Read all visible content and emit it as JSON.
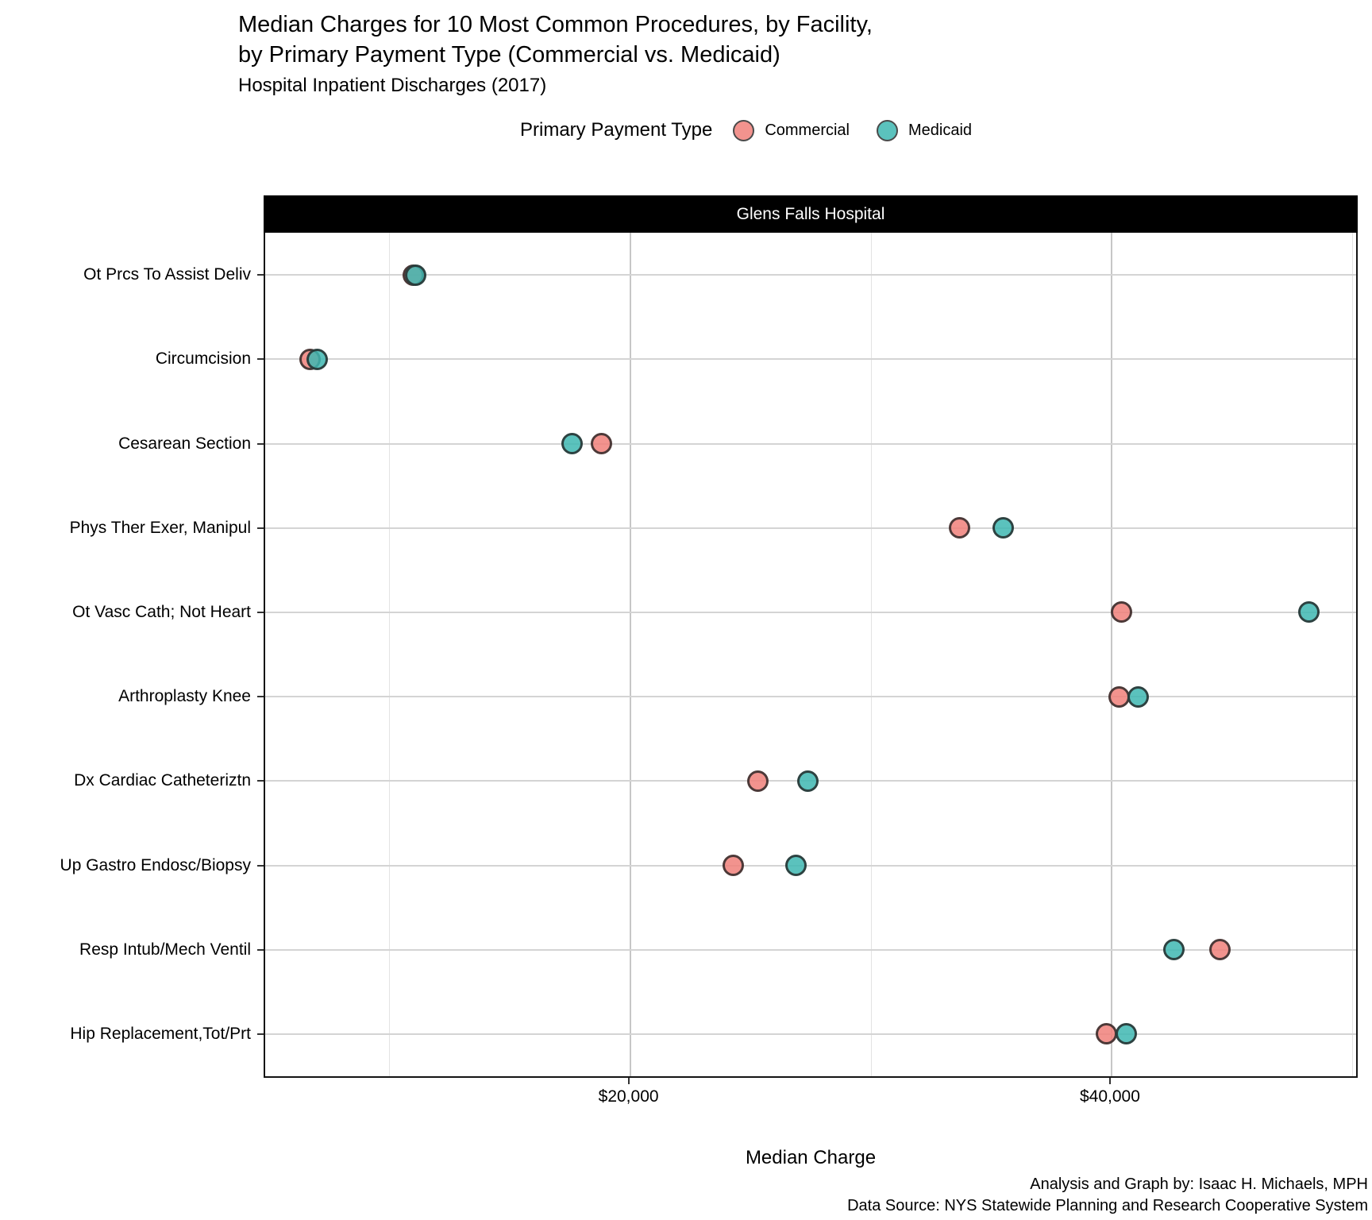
{
  "chart_data": {
    "type": "scatter",
    "variant": "horizontal-dot-plot",
    "title_line1": "Median Charges for 10 Most Common Procedures, by Facility,",
    "title_line2": "by Primary Payment Type (Commercial vs. Medicaid)",
    "subtitle": "Hospital Inpatient Discharges (2017)",
    "legend_title": "Primary Payment Type",
    "legend_position": "top",
    "facet_label": "Glens Falls Hospital",
    "categories": [
      "Ot Prcs To Assist Deliv",
      "Circumcision",
      "Cesarean Section",
      "Phys Ther Exer, Manipul",
      "Ot Vasc Cath; Not Heart",
      "Arthroplasty Knee",
      "Dx Cardiac Catheteriztn",
      "Up Gastro Endosc/Biopsy",
      "Resp Intub/Mech Ventil",
      "Hip Replacement,Tot/Prt"
    ],
    "series": [
      {
        "name": "Commercial",
        "color": "#F0807A",
        "values": [
          11000,
          6700,
          18800,
          33700,
          40400,
          40300,
          25300,
          24300,
          44500,
          39800
        ]
      },
      {
        "name": "Medicaid",
        "color": "#3EB7B2",
        "values": [
          11100,
          7000,
          17600,
          35500,
          48200,
          41100,
          27400,
          26900,
          42600,
          40600
        ]
      }
    ],
    "xlabel": "Median Charge",
    "xlim": [
      4840,
      50160
    ],
    "x_ticks": [
      {
        "value": 20000,
        "label": "$20,000"
      },
      {
        "value": 40000,
        "label": "$40,000"
      }
    ],
    "x_minor_gridlines": [
      10000,
      30000,
      50000
    ],
    "grid": "on",
    "caption_line1": "Analysis and Graph by: Isaac H. Michaels, MPH",
    "caption_line2": "Data Source: NYS Statewide Planning and Research Cooperative System"
  }
}
